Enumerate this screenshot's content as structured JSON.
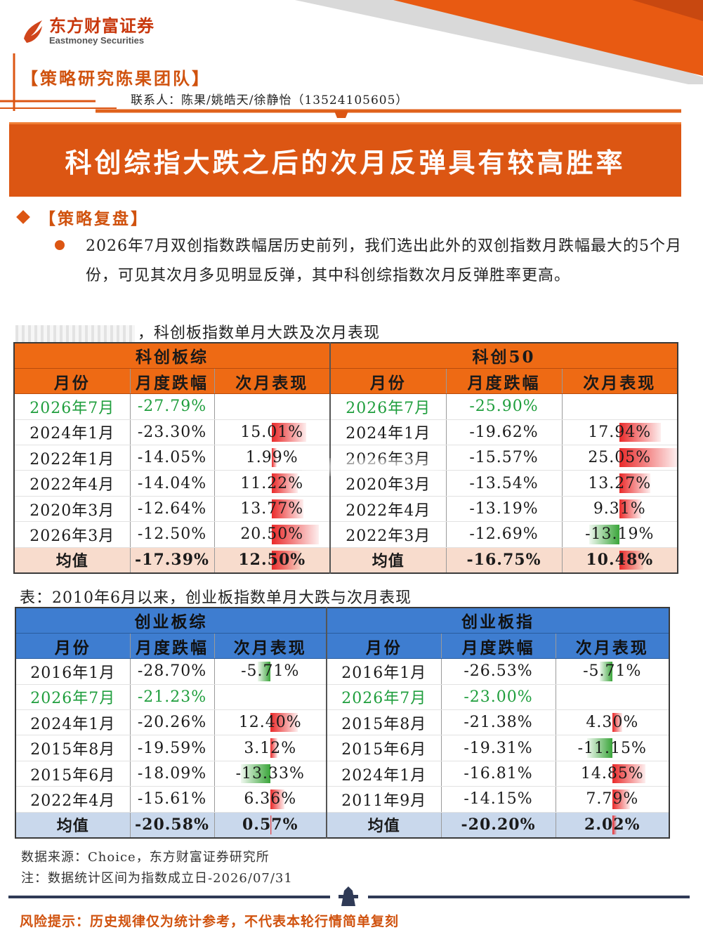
{
  "header": {
    "logo_cn": "东方财富证券",
    "logo_en": "Eastmoney Securities",
    "team": "【策略研究陈果团队】",
    "contact": "联系人：陈果/姚皓天/徐静怡（13524105605）"
  },
  "banner": {
    "title": "科创综指大跌之后的次月反弹具有较高胜率"
  },
  "section": {
    "title": "【策略复盘】",
    "paragraph": "2026年7月双创指数跌幅居历史前列，我们选出此外的双创指数月跌幅最大的5个月份，可见其次月多见明显反弹，其中科创综指数次月反弹胜率更高。"
  },
  "colors": {
    "accent": "#dc5613",
    "orange_header": "#ee6a14",
    "blue_header": "#3e7dd0",
    "up": "#ea2a2a",
    "down": "#3aa53a",
    "highlight": "#1f9e3d"
  },
  "table1": {
    "caption": "，科创板指数单月大跌及次月表现",
    "groups": [
      "科创板综",
      "科创50"
    ],
    "columns": [
      "月份",
      "月度跌幅",
      "次月表现",
      "月份",
      "月度跌幅",
      "次月表现"
    ],
    "rows": [
      [
        "2026年7月",
        "-27.79%",
        "",
        "2026年7月",
        "-25.90%",
        ""
      ],
      [
        "2024年1月",
        "-23.30%",
        "15.01%",
        "2024年1月",
        "-19.62%",
        "17.94%"
      ],
      [
        "2022年1月",
        "-14.05%",
        "1.99%",
        "2026年3月",
        "-15.57%",
        "25.05%"
      ],
      [
        "2022年4月",
        "-14.04%",
        "11.22%",
        "2020年3月",
        "-13.54%",
        "13.27%"
      ],
      [
        "2020年3月",
        "-12.64%",
        "13.77%",
        "2022年4月",
        "-13.19%",
        "9.31%"
      ],
      [
        "2026年3月",
        "-12.50%",
        "20.50%",
        "2022年3月",
        "-12.69%",
        "-13.19%"
      ]
    ],
    "next_month_values": [
      [
        null,
        15.01,
        1.99,
        11.22,
        13.77,
        20.5
      ],
      [
        null,
        17.94,
        25.05,
        13.27,
        9.31,
        -13.19
      ]
    ],
    "average": [
      "均值",
      "-17.39%",
      "12.50%",
      "均值",
      "-16.75%",
      "10.48%"
    ],
    "average_values": [
      12.5,
      10.48
    ]
  },
  "table2": {
    "caption": "表：2010年6月以来，创业板指数单月大跌与次月表现",
    "groups": [
      "创业板综",
      "创业板指"
    ],
    "columns": [
      "月份",
      "月度跌幅",
      "次月表现",
      "月份",
      "月度跌幅",
      "次月表现"
    ],
    "rows": [
      [
        "2016年1月",
        "-28.70%",
        "-5.71%",
        "2016年1月",
        "-26.53%",
        "-5.71%"
      ],
      [
        "2026年7月",
        "-21.23%",
        "",
        "2026年7月",
        "-23.00%",
        ""
      ],
      [
        "2024年1月",
        "-20.26%",
        "12.40%",
        "2015年8月",
        "-21.38%",
        "4.30%"
      ],
      [
        "2015年8月",
        "-19.59%",
        "3.12%",
        "2015年6月",
        "-19.31%",
        "-11.15%"
      ],
      [
        "2015年6月",
        "-18.09%",
        "-13.33%",
        "2024年1月",
        "-16.81%",
        "14.85%"
      ],
      [
        "2022年4月",
        "-15.61%",
        "6.36%",
        "2011年9月",
        "-14.15%",
        "7.79%"
      ]
    ],
    "next_month_values": [
      [
        -5.71,
        null,
        12.4,
        3.12,
        -13.33,
        6.36
      ],
      [
        -5.71,
        null,
        4.3,
        -11.15,
        14.85,
        7.79
      ]
    ],
    "average": [
      "均值",
      "-20.58%",
      "0.57%",
      "均值",
      "-20.20%",
      "2.02%"
    ],
    "average_values": [
      0.57,
      2.02
    ]
  },
  "notes": {
    "source": "数据来源：Choice，东方财富证券研究所",
    "note": "注：数据统计区间为指数成立日-2026/07/31",
    "risk": "风险提示：历史规律仅为统计参考，不代表本轮行情简单复刻"
  }
}
